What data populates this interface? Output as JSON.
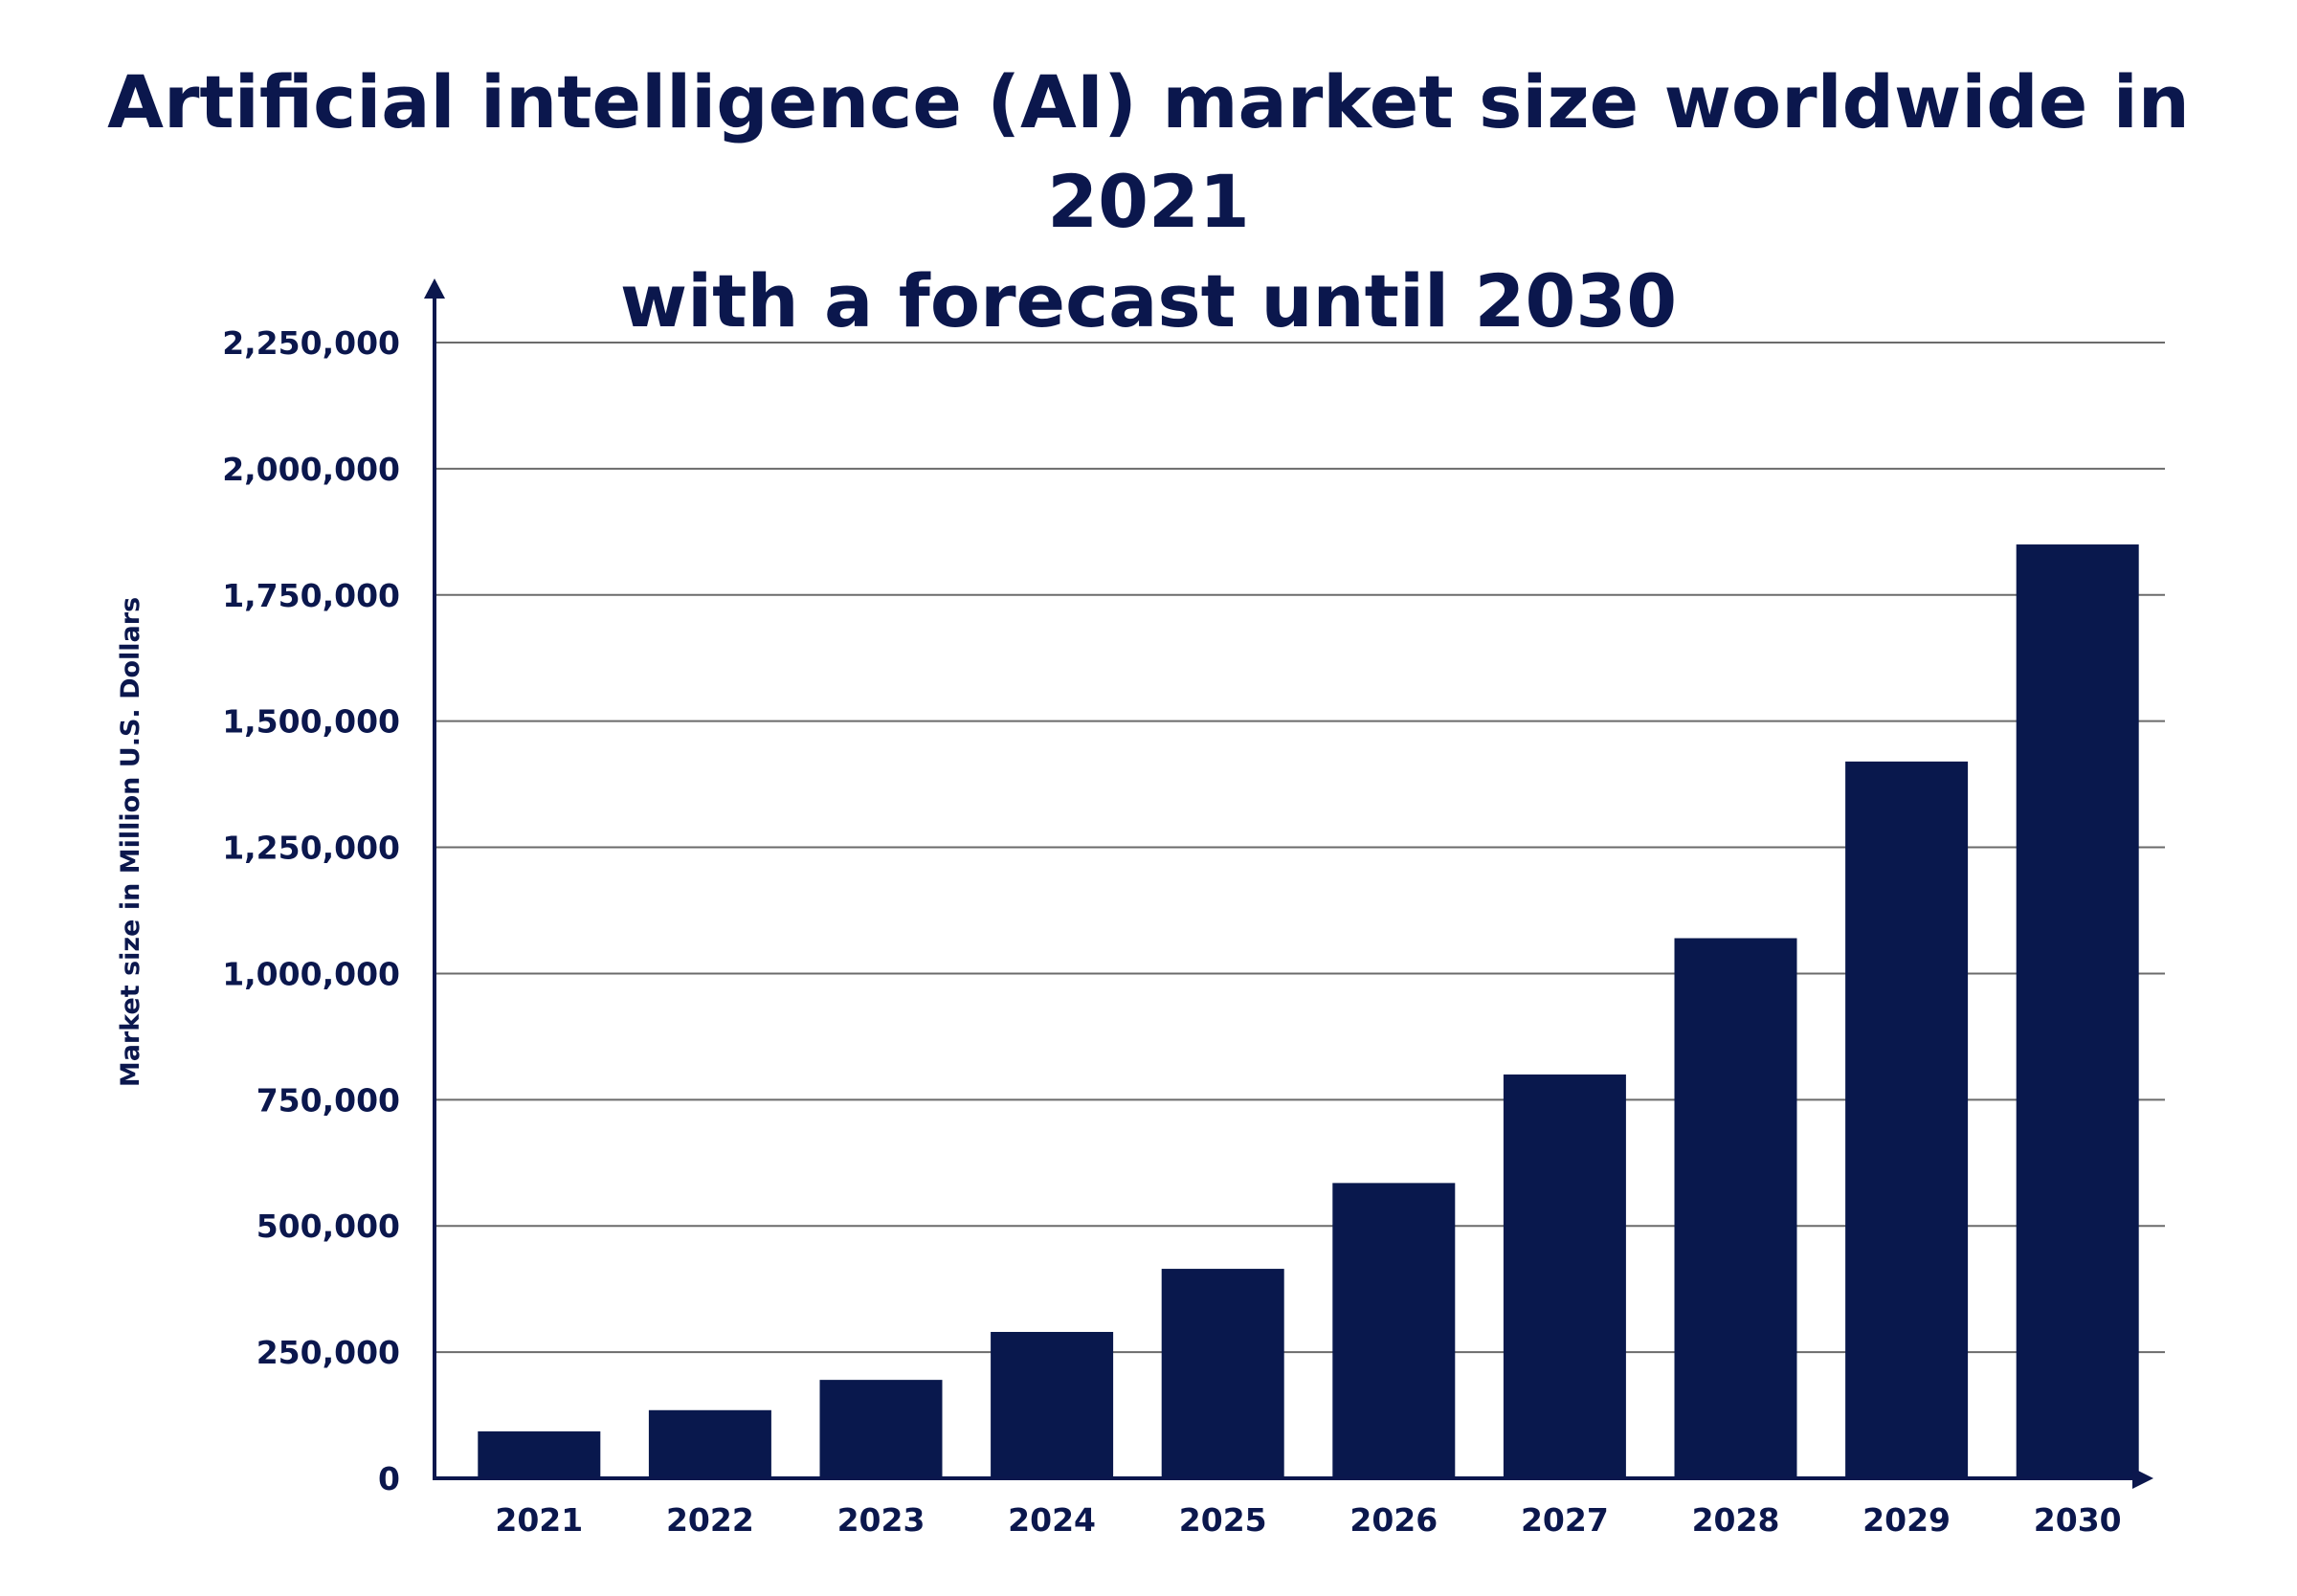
{
  "title_line1": "Artificial intelligence (AI) market size worldwide in 2021",
  "title_line2": "with a forecast until 2030",
  "chart_data": {
    "type": "bar",
    "title": "Artificial intelligence (AI) market size worldwide in 2021 with a forecast until 2030",
    "xlabel": "",
    "ylabel": "Market size in Million U.S. Dollars",
    "categories": [
      "2021",
      "2022",
      "2023",
      "2024",
      "2025",
      "2026",
      "2027",
      "2028",
      "2029",
      "2030"
    ],
    "values": [
      93000,
      135000,
      195000,
      290000,
      415000,
      585000,
      800000,
      1070000,
      1420000,
      1850000
    ],
    "ylim": [
      0,
      2250000
    ],
    "yticks": [
      0,
      250000,
      500000,
      750000,
      1000000,
      1250000,
      1500000,
      1750000,
      2000000,
      2250000
    ],
    "ytick_labels": [
      "0",
      "250,000",
      "500,000",
      "750,000",
      "1,000,000",
      "1,250,000",
      "1,500,000",
      "1,750,000",
      "2,000,000",
      "2,250,000"
    ],
    "grid": true,
    "legend": "none",
    "colors": {
      "bar": "#09184d",
      "text": "#0b174d",
      "grid": "#6b6b6b",
      "axis": "#0b174d"
    }
  }
}
